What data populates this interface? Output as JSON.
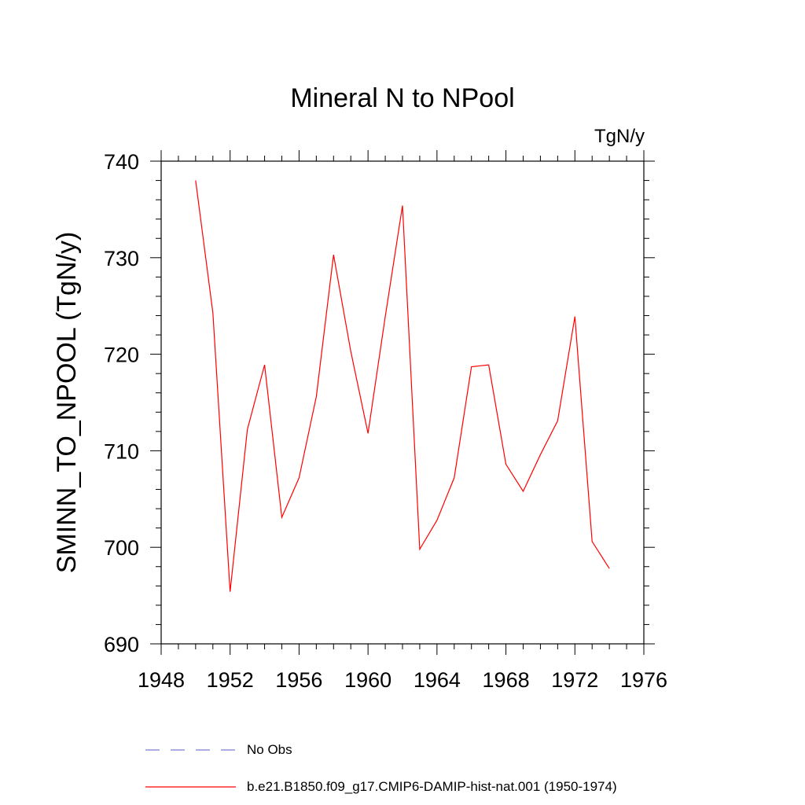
{
  "chart_data": {
    "type": "line",
    "title": "Mineral N to NPool",
    "units_label": "TgN/y",
    "ylabel": "SMINN_TO_NPOOL  (TgN/y)",
    "xlabel": "",
    "xlim": [
      1948,
      1976
    ],
    "ylim": [
      690,
      740
    ],
    "x_ticks": [
      1948,
      1952,
      1956,
      1960,
      1964,
      1968,
      1972,
      1976
    ],
    "y_ticks": [
      690,
      700,
      710,
      720,
      730,
      740
    ],
    "x_tick_labels": [
      "1948",
      "1952",
      "1956",
      "1960",
      "1964",
      "1968",
      "1972",
      "1976"
    ],
    "y_tick_labels": [
      "690",
      "700",
      "710",
      "720",
      "730",
      "740"
    ],
    "x_minor_step": 1,
    "y_minor_step": 2,
    "grid": false,
    "legend_position": "bottom",
    "series": [
      {
        "name": "b.e21.B1850.f09_g17.CMIP6-DAMIP-hist-nat.001 (1950-1974)",
        "color": "#ff0000",
        "style": "solid",
        "x": [
          1950,
          1951,
          1952,
          1953,
          1954,
          1955,
          1956,
          1957,
          1958,
          1959,
          1960,
          1961,
          1962,
          1963,
          1964,
          1965,
          1966,
          1967,
          1968,
          1969,
          1970,
          1971,
          1972,
          1973,
          1974
        ],
        "y": [
          738.0,
          724.3,
          695.4,
          712.2,
          718.9,
          703.1,
          707.2,
          715.6,
          730.3,
          720.3,
          711.8,
          723.9,
          735.4,
          699.8,
          702.8,
          707.2,
          718.7,
          718.9,
          708.6,
          705.8,
          709.6,
          713.1,
          723.9,
          700.6,
          697.8
        ]
      }
    ],
    "legend": [
      {
        "label": "No Obs",
        "color": "#7b7bd6",
        "style": "dashed"
      },
      {
        "label": "b.e21.B1850.f09_g17.CMIP6-DAMIP-hist-nat.001 (1950-1974)",
        "color": "#ff0000",
        "style": "solid"
      }
    ]
  }
}
